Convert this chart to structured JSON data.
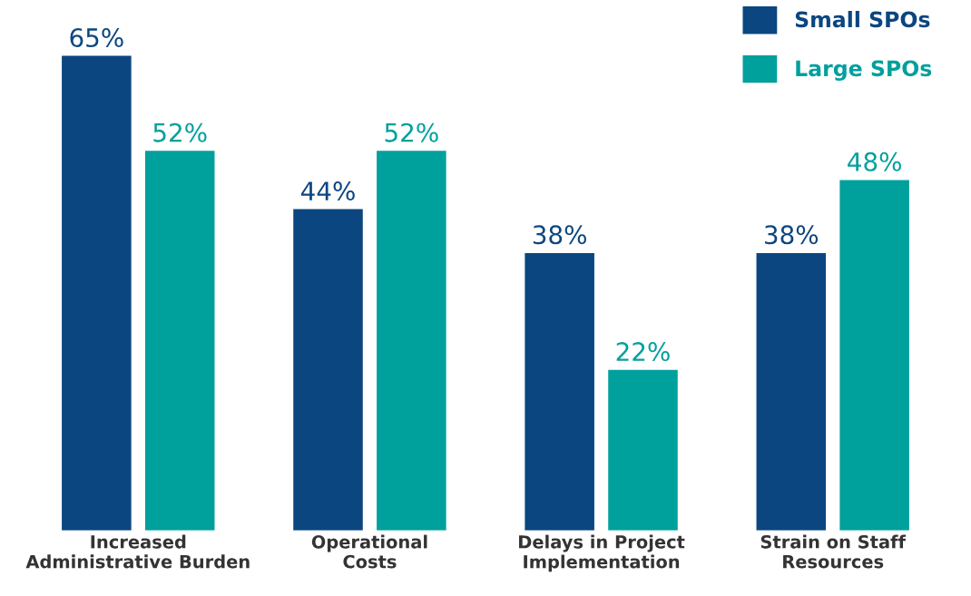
{
  "chart_data": {
    "type": "bar",
    "categories": [
      "Increased\nAdministrative Burden",
      "Operational\nCosts",
      "Delays in Project\nImplementation",
      "Strain on Staff\nResources"
    ],
    "series": [
      {
        "name": "Small SPOs",
        "color": "#0b4680",
        "values": [
          65,
          44,
          38,
          38
        ],
        "value_labels": [
          "65%",
          "44%",
          "38%",
          "38%"
        ]
      },
      {
        "name": "Large SPOs",
        "color": "#00a09d",
        "values": [
          52,
          52,
          22,
          48
        ],
        "value_labels": [
          "52%",
          "52%",
          "22%",
          "48%"
        ]
      }
    ],
    "legend": "top right",
    "grid": false
  }
}
